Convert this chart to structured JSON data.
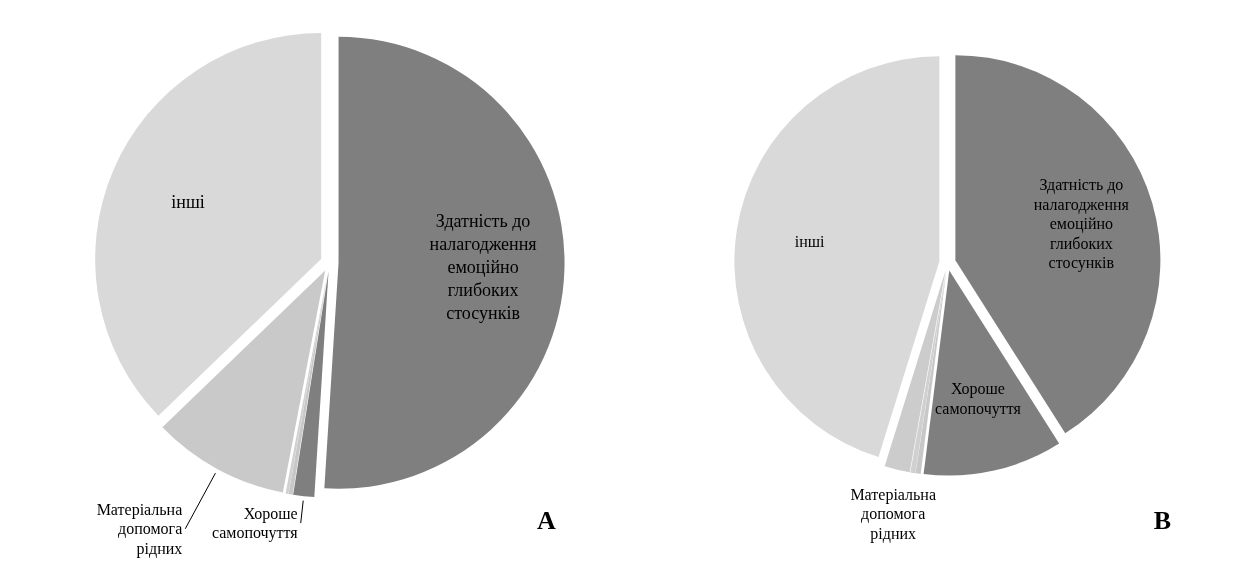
{
  "chart_data": [
    {
      "type": "pie",
      "title": "A",
      "categories": [
        "Здатність до налагодження емоційно глибоких стосунків",
        "Хороше самопочуття",
        null,
        null,
        "Матеріальна допомога рідних",
        "інші"
      ],
      "values": [
        51,
        1.5,
        0.3,
        0.2,
        9.8,
        37.2
      ],
      "colors": [
        "#7f7f7f",
        "#7f7f7f",
        "#c8c8c8",
        "#d0d0d0",
        "#c9c9c9",
        "#d9d9d9"
      ]
    },
    {
      "type": "pie",
      "title": "B",
      "categories": [
        "Здатність до налагодження емоційно глибоких стосунків",
        "Хороше самопочуття",
        null,
        null,
        "Матеріальна допомога рідних",
        "інші"
      ],
      "values": [
        41,
        11,
        0.4,
        0.4,
        2,
        45.2
      ],
      "colors": [
        "#7f7f7f",
        "#7f7f7f",
        "#c8c8c8",
        "#d0d0d0",
        "#cccccc",
        "#d9d9d9"
      ]
    }
  ]
}
